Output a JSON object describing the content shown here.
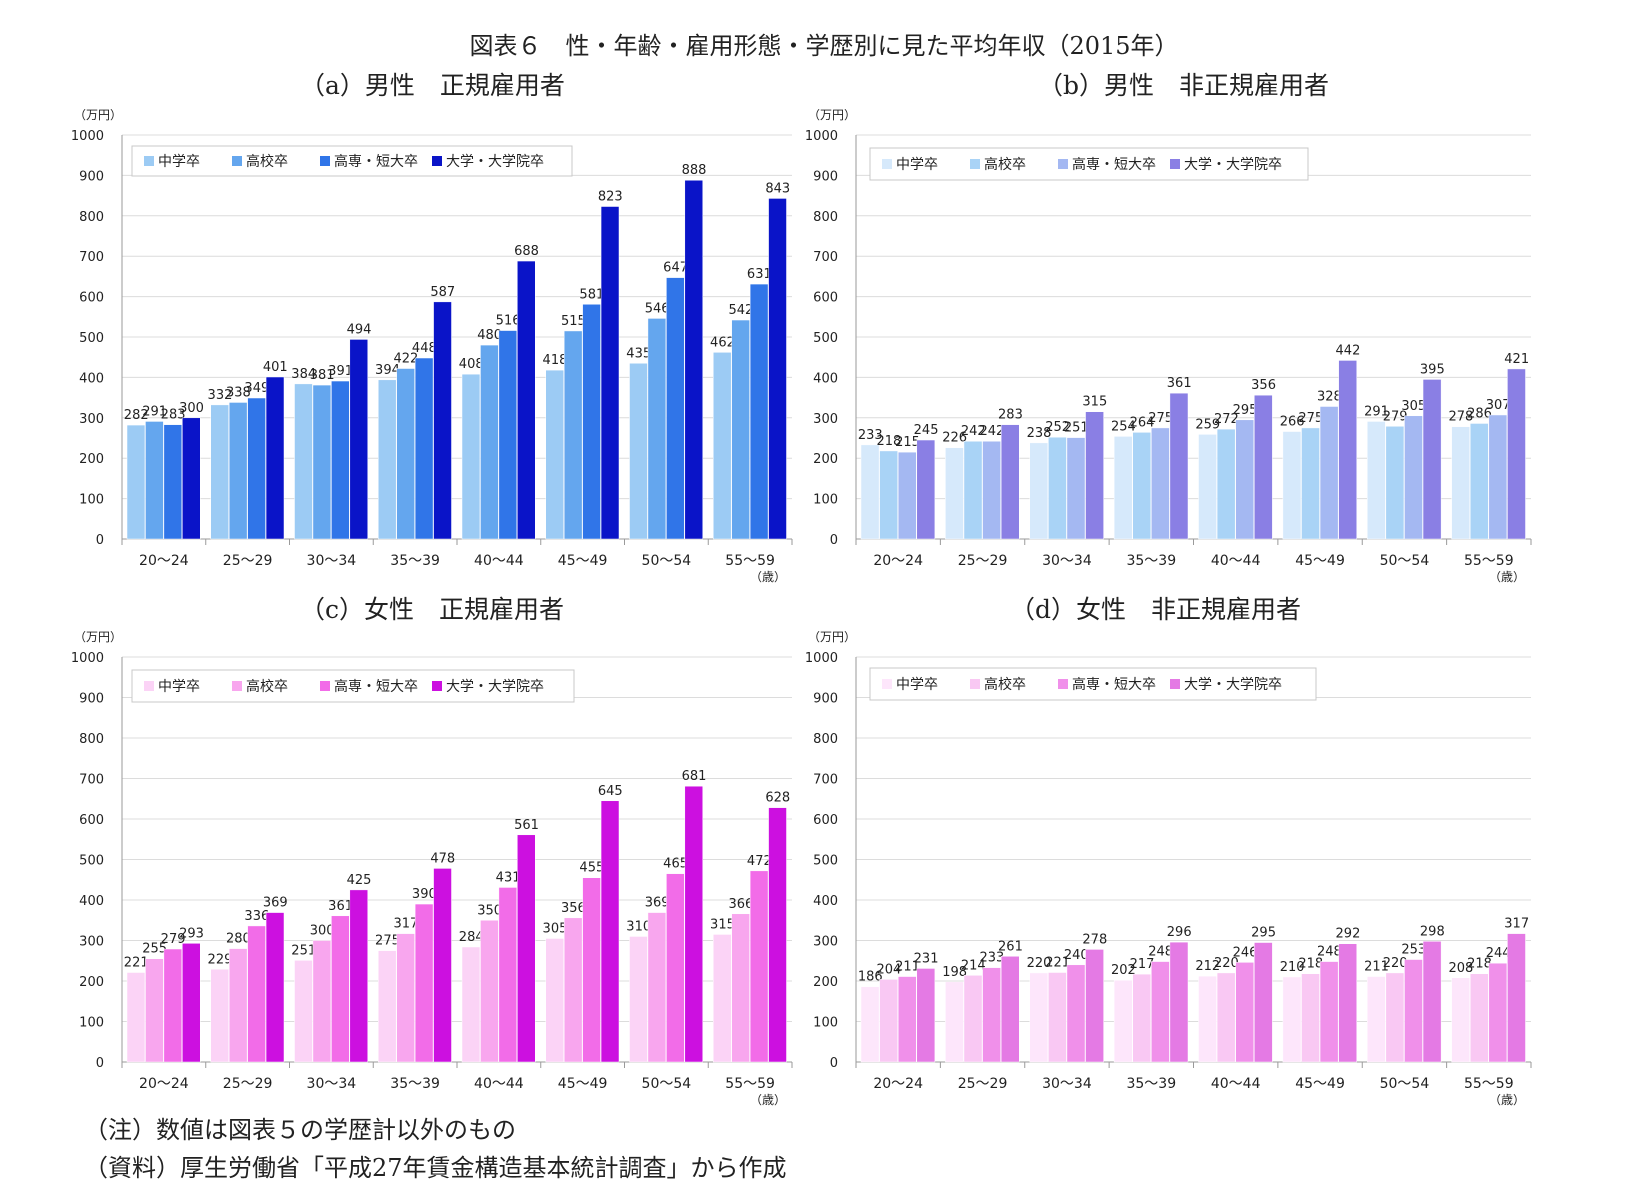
{
  "figure_title": "図表６　性・年齢・雇用形態・学歴別に見た平均年収（2015年）",
  "notes": [
    "（注）数値は図表５の学歴計以外のもの",
    "（資料）厚生労働省「平成27年賃金構造基本統計調査」から作成"
  ],
  "chart_data": [
    {
      "type": "bar",
      "title": "（a）男性　正規雇用者",
      "ylabel": "（万円）",
      "xlabel": "（歳）",
      "ylim": [
        0,
        1000
      ],
      "yticks": [
        0,
        100,
        200,
        300,
        400,
        500,
        600,
        700,
        800,
        900,
        1000
      ],
      "legend_position": "top-left",
      "grid": true,
      "categories": [
        "20～24",
        "25～29",
        "30～34",
        "35～39",
        "40～44",
        "45～49",
        "50～54",
        "55～59"
      ],
      "series": [
        {
          "name": "中学卒",
          "color": "#9ccbf4",
          "values": [
            282,
            332,
            384,
            394,
            408,
            418,
            435,
            462
          ]
        },
        {
          "name": "高校卒",
          "color": "#64a6ee",
          "values": [
            291,
            338,
            381,
            422,
            480,
            515,
            546,
            542
          ]
        },
        {
          "name": "高専・短大卒",
          "color": "#3075e8",
          "values": [
            283,
            349,
            391,
            448,
            516,
            581,
            647,
            631
          ]
        },
        {
          "name": "大学・大学院卒",
          "color": "#0a14c8",
          "values": [
            300,
            401,
            494,
            587,
            688,
            823,
            888,
            843
          ]
        }
      ]
    },
    {
      "type": "bar",
      "title": "（b）男性　非正規雇用者",
      "ylabel": "（万円）",
      "xlabel": "（歳）",
      "ylim": [
        0,
        1000
      ],
      "yticks": [
        0,
        100,
        200,
        300,
        400,
        500,
        600,
        700,
        800,
        900,
        1000
      ],
      "legend_position": "top-left",
      "grid": true,
      "categories": [
        "20～24",
        "25～29",
        "30～34",
        "35～39",
        "40～44",
        "45～49",
        "50～54",
        "55～59"
      ],
      "series": [
        {
          "name": "中学卒",
          "color": "#d6e9fb",
          "values": [
            233,
            226,
            238,
            254,
            259,
            266,
            291,
            278
          ]
        },
        {
          "name": "高校卒",
          "color": "#a9d3f6",
          "values": [
            218,
            242,
            252,
            264,
            272,
            275,
            279,
            286
          ]
        },
        {
          "name": "高専・短大卒",
          "color": "#a4b8f2",
          "values": [
            215,
            242,
            251,
            275,
            295,
            328,
            305,
            307
          ]
        },
        {
          "name": "大学・大学院卒",
          "color": "#8a7fe4",
          "values": [
            245,
            283,
            315,
            361,
            356,
            442,
            395,
            421
          ]
        }
      ]
    },
    {
      "type": "bar",
      "title": "（c）女性　正規雇用者",
      "ylabel": "（万円）",
      "xlabel": "（歳）",
      "ylim": [
        0,
        1000
      ],
      "yticks": [
        0,
        100,
        200,
        300,
        400,
        500,
        600,
        700,
        800,
        900,
        1000
      ],
      "legend_position": "top-left",
      "grid": true,
      "categories": [
        "20～24",
        "25～29",
        "30～34",
        "35～39",
        "40～44",
        "45～49",
        "50～54",
        "55～59"
      ],
      "series": [
        {
          "name": "中学卒",
          "color": "#fbd3f6",
          "values": [
            221,
            229,
            251,
            275,
            284,
            305,
            310,
            315
          ]
        },
        {
          "name": "高校卒",
          "color": "#f8a6ee",
          "values": [
            255,
            280,
            300,
            317,
            350,
            356,
            369,
            366
          ]
        },
        {
          "name": "高専・短大卒",
          "color": "#f26ce8",
          "values": [
            279,
            336,
            361,
            390,
            431,
            455,
            465,
            472
          ]
        },
        {
          "name": "大学・大学院卒",
          "color": "#cc10e0",
          "values": [
            293,
            369,
            425,
            478,
            561,
            645,
            681,
            628
          ]
        }
      ]
    },
    {
      "type": "bar",
      "title": "（d）女性　非正規雇用者",
      "ylabel": "（万円）",
      "xlabel": "（歳）",
      "ylim": [
        0,
        1000
      ],
      "yticks": [
        0,
        100,
        200,
        300,
        400,
        500,
        600,
        700,
        800,
        900,
        1000
      ],
      "legend_position": "top-left",
      "grid": true,
      "categories": [
        "20～24",
        "25～29",
        "30～34",
        "35～39",
        "40～44",
        "45～49",
        "50～54",
        "55～59"
      ],
      "series": [
        {
          "name": "中学卒",
          "color": "#fde6fb",
          "values": [
            186,
            198,
            220,
            202,
            212,
            210,
            211,
            208
          ]
        },
        {
          "name": "高校卒",
          "color": "#f9c8f3",
          "values": [
            204,
            214,
            221,
            217,
            220,
            218,
            220,
            218
          ]
        },
        {
          "name": "高専・短大卒",
          "color": "#f090ea",
          "values": [
            211,
            233,
            240,
            248,
            246,
            248,
            253,
            244
          ]
        },
        {
          "name": "大学・大学院卒",
          "color": "#e47ae4",
          "values": [
            231,
            261,
            278,
            296,
            295,
            292,
            298,
            317
          ]
        }
      ]
    }
  ]
}
